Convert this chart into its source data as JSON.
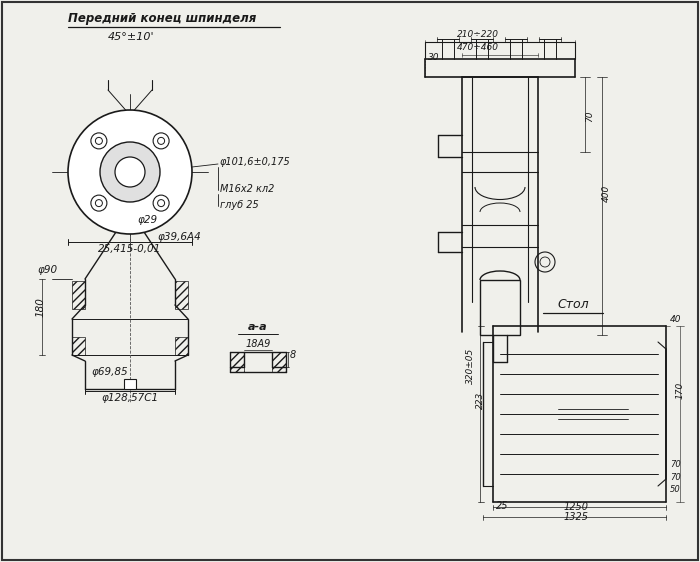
{
  "bg_color": "#f0f0eb",
  "line_color": "#1a1a1a",
  "title": "Передний конец шпинделя",
  "fig_width": 7.0,
  "fig_height": 5.62,
  "dpi": 100,
  "annotations": {
    "title": "Передний конец шпинделя",
    "angle": "45°±10'",
    "diam1": "φ101,6±0,175",
    "thread": "M16x2 кл2",
    "depth": "глуб 25",
    "dim1": "25,415-0,01",
    "diam_29": "φ29",
    "diam_396": "φ39,6A4",
    "diam_90": "φ90",
    "dim_180": "180",
    "diam_6985": "φ69,85",
    "diam_12857": "φ128,57C1",
    "section_aa": "a-a",
    "dim_18a9": "18A9",
    "dim_8": "8",
    "dim_30": "30",
    "dim_470": "470÷460",
    "dim_210": "210÷220",
    "dim_70": "70",
    "dim_400": "400",
    "dim_320": "320±05",
    "dim_223": "223",
    "dim_40": "40",
    "dim_25": "25",
    "dim_70b": "70",
    "dim_70c": "70",
    "dim_50": "50",
    "dim_1250": "1250",
    "dim_1325": "1325",
    "dim_170": "170",
    "label_stal": "Стол"
  }
}
